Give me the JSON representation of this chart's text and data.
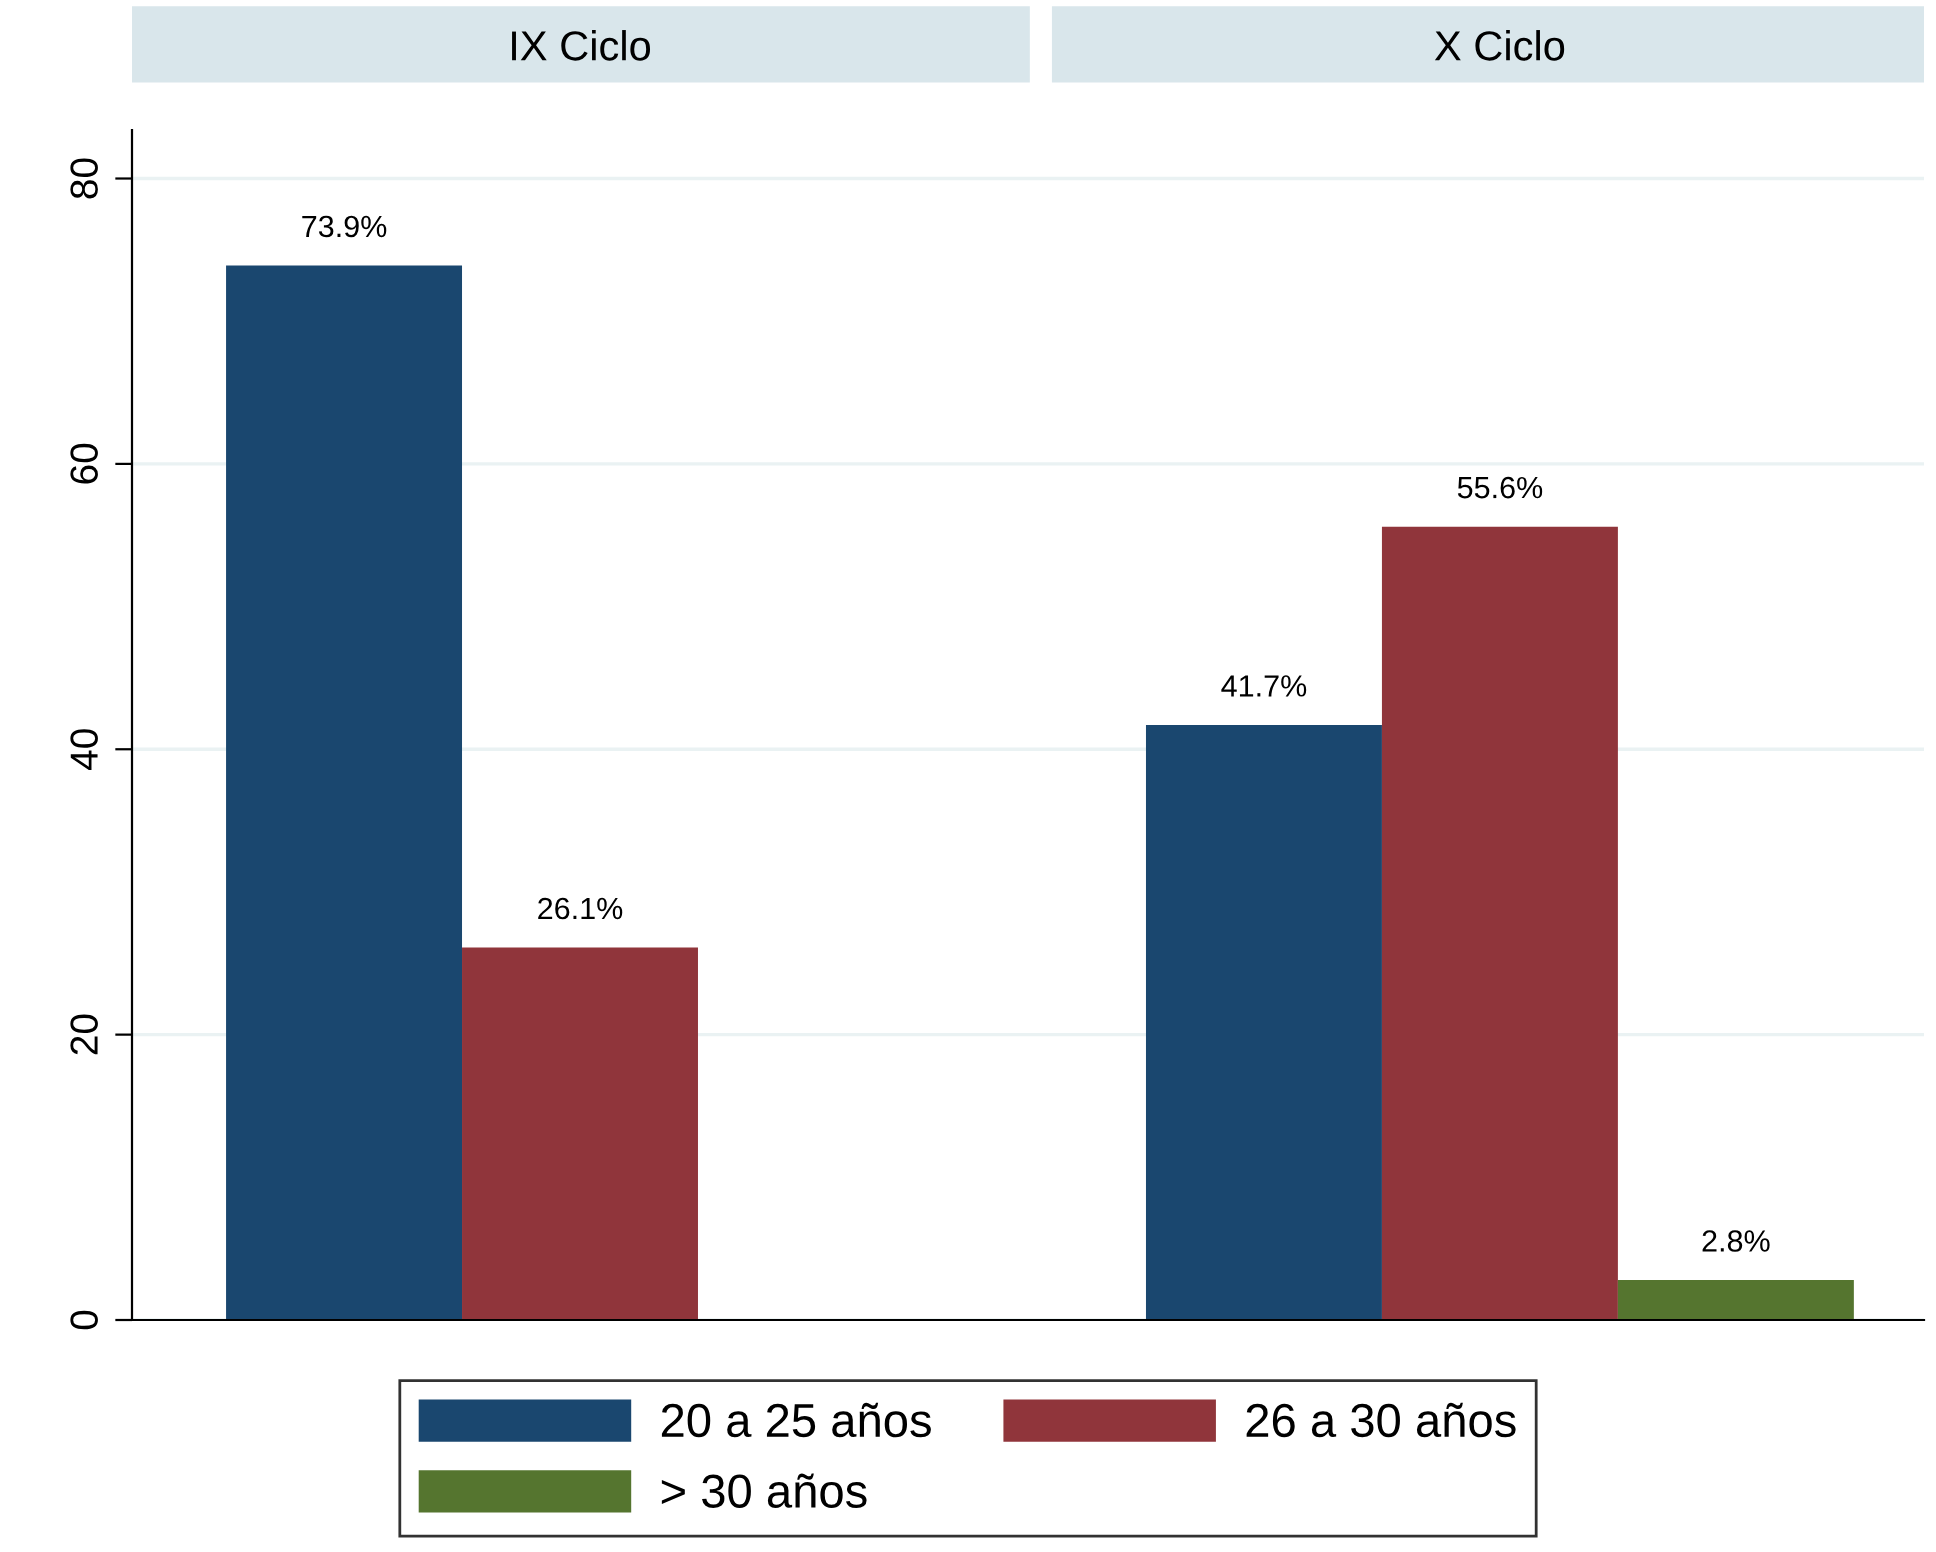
{
  "chart_data": {
    "type": "bar",
    "categories": [
      "IX Ciclo",
      "X Ciclo"
    ],
    "ylim": [
      0,
      83.4
    ],
    "yticks": [
      0,
      20,
      40,
      60,
      80
    ],
    "grid": "y",
    "legend": "bottom",
    "series": [
      {
        "name": "20 a 25 años",
        "color": "#1a476f",
        "values": [
          73.9,
          41.7
        ],
        "value_labels": [
          "73.9%",
          "41.7%"
        ]
      },
      {
        "name": "26 a 30 años",
        "color": "#90353b",
        "values": [
          26.1,
          55.6
        ],
        "value_labels": [
          "26.1%",
          "55.6%"
        ]
      },
      {
        "name": "> 30 años",
        "color": "#55752f",
        "values": [
          null,
          2.8
        ],
        "value_labels": [
          null,
          "2.8%"
        ]
      }
    ]
  }
}
